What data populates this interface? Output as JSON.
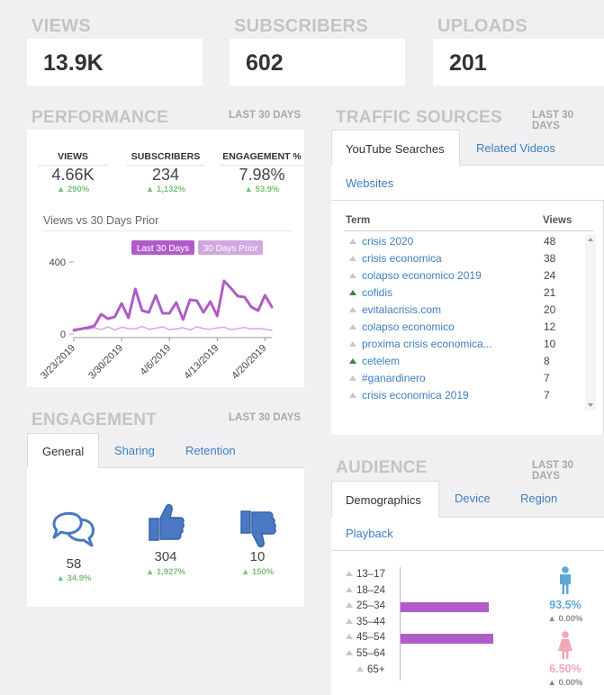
{
  "stats": [
    {
      "title": "VIEWS",
      "value": "13.9K"
    },
    {
      "title": "SUBSCRIBERS",
      "value": "602"
    },
    {
      "title": "UPLOADS",
      "value": "201"
    }
  ],
  "performance": {
    "title": "PERFORMANCE",
    "range": "LAST 30 DAYS",
    "metrics": [
      {
        "label": "VIEWS",
        "value": "4.66K",
        "change": "290%"
      },
      {
        "label": "SUBSCRIBERS",
        "value": "234",
        "change": "1,132%"
      },
      {
        "label": "ENGAGEMENT %",
        "value": "7.98%",
        "change": "53.9%"
      }
    ],
    "chart_title": "Views vs 30 Days Prior",
    "chart_data": {
      "type": "line",
      "legend_position": "top-right",
      "legend": [
        "Last 30 Days",
        "30 Days Prior"
      ],
      "y_ticks": [
        "400",
        "0"
      ],
      "ylim": [
        0,
        400
      ],
      "x_tick_labels": [
        "3/23/2019",
        "3/30/2019",
        "4/6/2019",
        "4/13/2019",
        "4/20/2019"
      ],
      "series": [
        {
          "name": "Last 30 Days",
          "color": "#b05cc8",
          "values": [
            20,
            28,
            35,
            45,
            110,
            85,
            95,
            170,
            90,
            250,
            130,
            120,
            215,
            115,
            115,
            175,
            80,
            190,
            185,
            120,
            180,
            100,
            295,
            255,
            210,
            205,
            150,
            130,
            215,
            150
          ]
        },
        {
          "name": "30 Days Prior",
          "color": "#d3a8e0",
          "values": [
            28,
            30,
            26,
            35,
            24,
            40,
            22,
            38,
            30,
            28,
            42,
            26,
            32,
            40,
            24,
            28,
            35,
            22,
            40,
            30,
            26,
            34,
            38,
            24,
            30,
            36,
            28,
            30,
            26,
            20
          ]
        }
      ]
    }
  },
  "traffic": {
    "title": "TRAFFIC SOURCES",
    "range": "LAST 30 DAYS",
    "tabs": [
      "YouTube Searches",
      "Related Videos",
      "Websites"
    ],
    "col_term": "Term",
    "col_views": "Views",
    "rows": [
      {
        "term": "crisis 2020",
        "views": "48",
        "trend": "flat"
      },
      {
        "term": "crisis economica",
        "views": "38",
        "trend": "flat"
      },
      {
        "term": "colapso economico 2019",
        "views": "24",
        "trend": "flat"
      },
      {
        "term": "cofidis",
        "views": "21",
        "trend": "up"
      },
      {
        "term": "evitalacrisis.com",
        "views": "20",
        "trend": "flat"
      },
      {
        "term": "colapso economico",
        "views": "12",
        "trend": "flat"
      },
      {
        "term": "proxima crisis economica...",
        "views": "10",
        "trend": "flat"
      },
      {
        "term": "cetelem",
        "views": "8",
        "trend": "up"
      },
      {
        "term": "#ganardinero",
        "views": "7",
        "trend": "flat"
      },
      {
        "term": "crisis economica 2019",
        "views": "7",
        "trend": "flat"
      }
    ]
  },
  "engagement": {
    "title": "ENGAGEMENT",
    "range": "LAST 30 DAYS",
    "tabs": [
      "General",
      "Sharing",
      "Retention"
    ],
    "items": [
      {
        "icon": "comments-icon",
        "value": "58",
        "change": "34.9%"
      },
      {
        "icon": "thumbs-up-icon",
        "value": "304",
        "change": "1,927%"
      },
      {
        "icon": "thumbs-down-icon",
        "value": "10",
        "change": "150%"
      }
    ]
  },
  "audience": {
    "title": "AUDIENCE",
    "range": "LAST 30 DAYS",
    "tabs": [
      "Demographics",
      "Device",
      "Region",
      "Playback"
    ],
    "ages": [
      {
        "label": "13–17",
        "share": 0
      },
      {
        "label": "18–24",
        "share": 0
      },
      {
        "label": "25–34",
        "share": 0.95
      },
      {
        "label": "35–44",
        "share": 0
      },
      {
        "label": "45–54",
        "share": 1.0
      },
      {
        "label": "55–64",
        "share": 0
      },
      {
        "label": "65+",
        "share": 0
      }
    ],
    "male_pct": "93.5%",
    "male_change": "0.00%",
    "female_pct": "6.50%",
    "female_change": "0.00%",
    "colors": {
      "male": "#5fa8d3",
      "female": "#f4a6b8",
      "bar": "#b05cc8"
    }
  }
}
